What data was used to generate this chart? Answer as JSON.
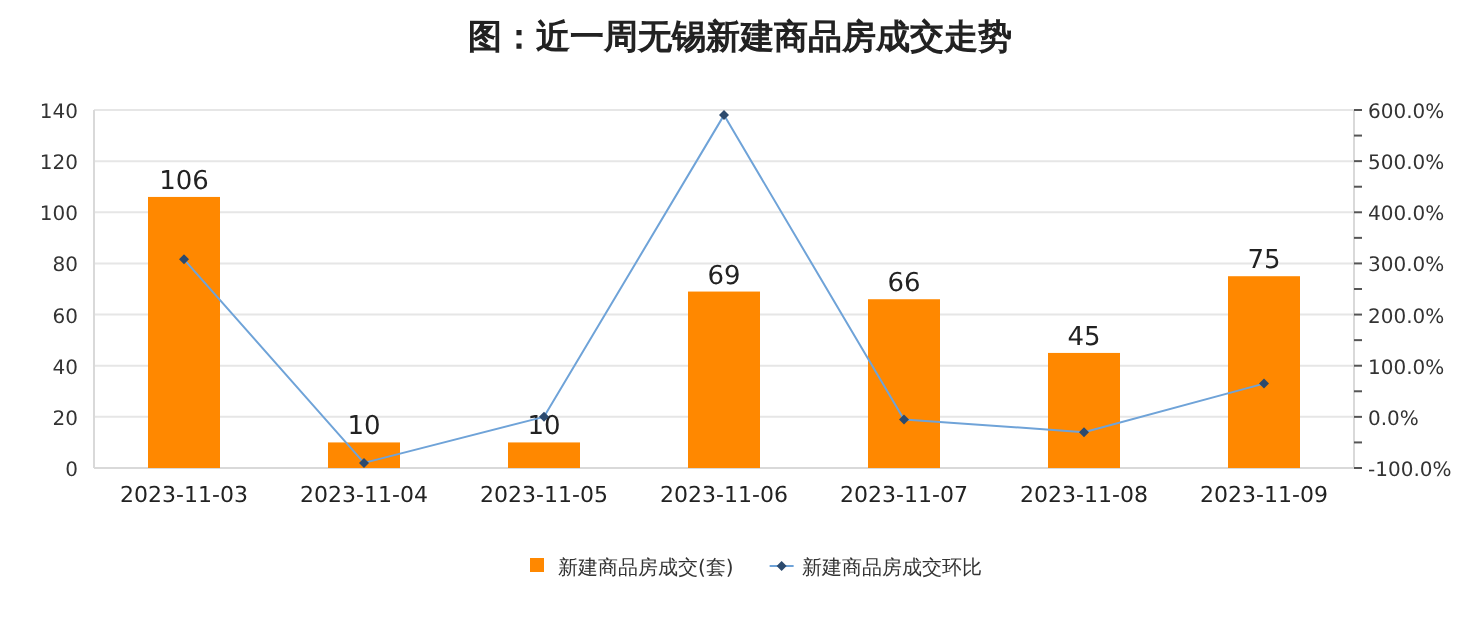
{
  "chart_data": {
    "type": "bar",
    "title": "图：近一周无锡新建商品房成交走势",
    "categories": [
      "2023-11-03",
      "2023-11-04",
      "2023-11-05",
      "2023-11-06",
      "2023-11-07",
      "2023-11-08",
      "2023-11-09"
    ],
    "series": [
      {
        "name": "新建商品房成交(套)",
        "color": "#ff8800",
        "values": [
          106,
          10,
          10,
          69,
          66,
          45,
          75
        ],
        "value_labels": [
          "106",
          "10",
          "10",
          "69",
          "66",
          "45",
          "75"
        ]
      },
      {
        "name": "新建商品房成交环比",
        "type": "line",
        "axis": "y2",
        "color": "#6fa3d8",
        "marker": "diamond",
        "values": [
          308,
          -90,
          0,
          590,
          -5,
          -30,
          65
        ]
      }
    ],
    "ylim": [
      0,
      140
    ],
    "yticks": [
      0,
      20,
      40,
      60,
      80,
      100,
      120,
      140
    ],
    "y2lim": [
      -100,
      600
    ],
    "y2ticks": [
      {
        "value": -100,
        "label": "-100.0%"
      },
      {
        "value": -50,
        "label": null
      },
      {
        "value": 0,
        "label": "0.0%"
      },
      {
        "value": 50,
        "label": null
      },
      {
        "value": 100,
        "label": "100.0%"
      },
      {
        "value": 150,
        "label": null
      },
      {
        "value": 200,
        "label": "200.0%"
      },
      {
        "value": 250,
        "label": null
      },
      {
        "value": 300,
        "label": "300.0%"
      },
      {
        "value": 350,
        "label": null
      },
      {
        "value": 400,
        "label": "400.0%"
      },
      {
        "value": 450,
        "label": null
      },
      {
        "value": 500,
        "label": "500.0%"
      },
      {
        "value": 550,
        "label": null
      },
      {
        "value": 600,
        "label": "600.0%"
      }
    ],
    "grid": "y",
    "legend": "bottom"
  }
}
